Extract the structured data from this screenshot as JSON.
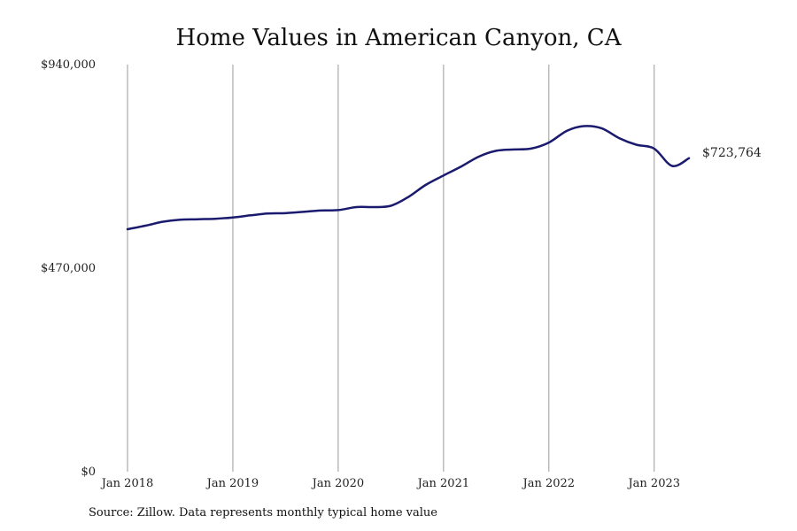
{
  "chart_data": {
    "type": "line",
    "title": "Home Values in American Canyon, CA",
    "source": "Source: Zillow. Data represents monthly typical home value",
    "xlabel": "",
    "ylabel": "",
    "ylim": [
      0,
      940000
    ],
    "y_ticks": [
      {
        "value": 0,
        "label": "$0"
      },
      {
        "value": 470000,
        "label": "$470,000"
      },
      {
        "value": 940000,
        "label": "$940,000"
      }
    ],
    "x_ticks": [
      {
        "value": 2018.0,
        "label": "Jan 2018"
      },
      {
        "value": 2019.0,
        "label": "Jan 2019"
      },
      {
        "value": 2020.0,
        "label": "Jan 2020"
      },
      {
        "value": 2021.0,
        "label": "Jan 2021"
      },
      {
        "value": 2022.0,
        "label": "Jan 2022"
      },
      {
        "value": 2023.0,
        "label": "Jan 2023"
      }
    ],
    "xlim": [
      2018.0,
      2023.33
    ],
    "grid": "vertical",
    "line_color": "#1a1a6e",
    "end_label": "$723,764",
    "series": [
      {
        "x": [
          2018.0,
          2018.17,
          2018.33,
          2018.5,
          2018.67,
          2018.83,
          2019.0,
          2019.17,
          2019.33,
          2019.5,
          2019.67,
          2019.83,
          2020.0,
          2020.17,
          2020.33,
          2020.5,
          2020.67,
          2020.83,
          2021.0,
          2021.17,
          2021.33,
          2021.5,
          2021.67,
          2021.83,
          2022.0,
          2022.17,
          2022.33,
          2022.5,
          2022.67,
          2022.83,
          2023.0,
          2023.17,
          2023.33
        ],
        "values": [
          560000,
          568000,
          577000,
          582000,
          583000,
          584000,
          587000,
          592000,
          596000,
          597000,
          600000,
          603000,
          604000,
          611000,
          611000,
          614000,
          635000,
          662000,
          684000,
          705000,
          727000,
          741000,
          744000,
          746000,
          760000,
          787000,
          798000,
          793000,
          770000,
          755000,
          746000,
          706000,
          723764
        ]
      }
    ]
  }
}
